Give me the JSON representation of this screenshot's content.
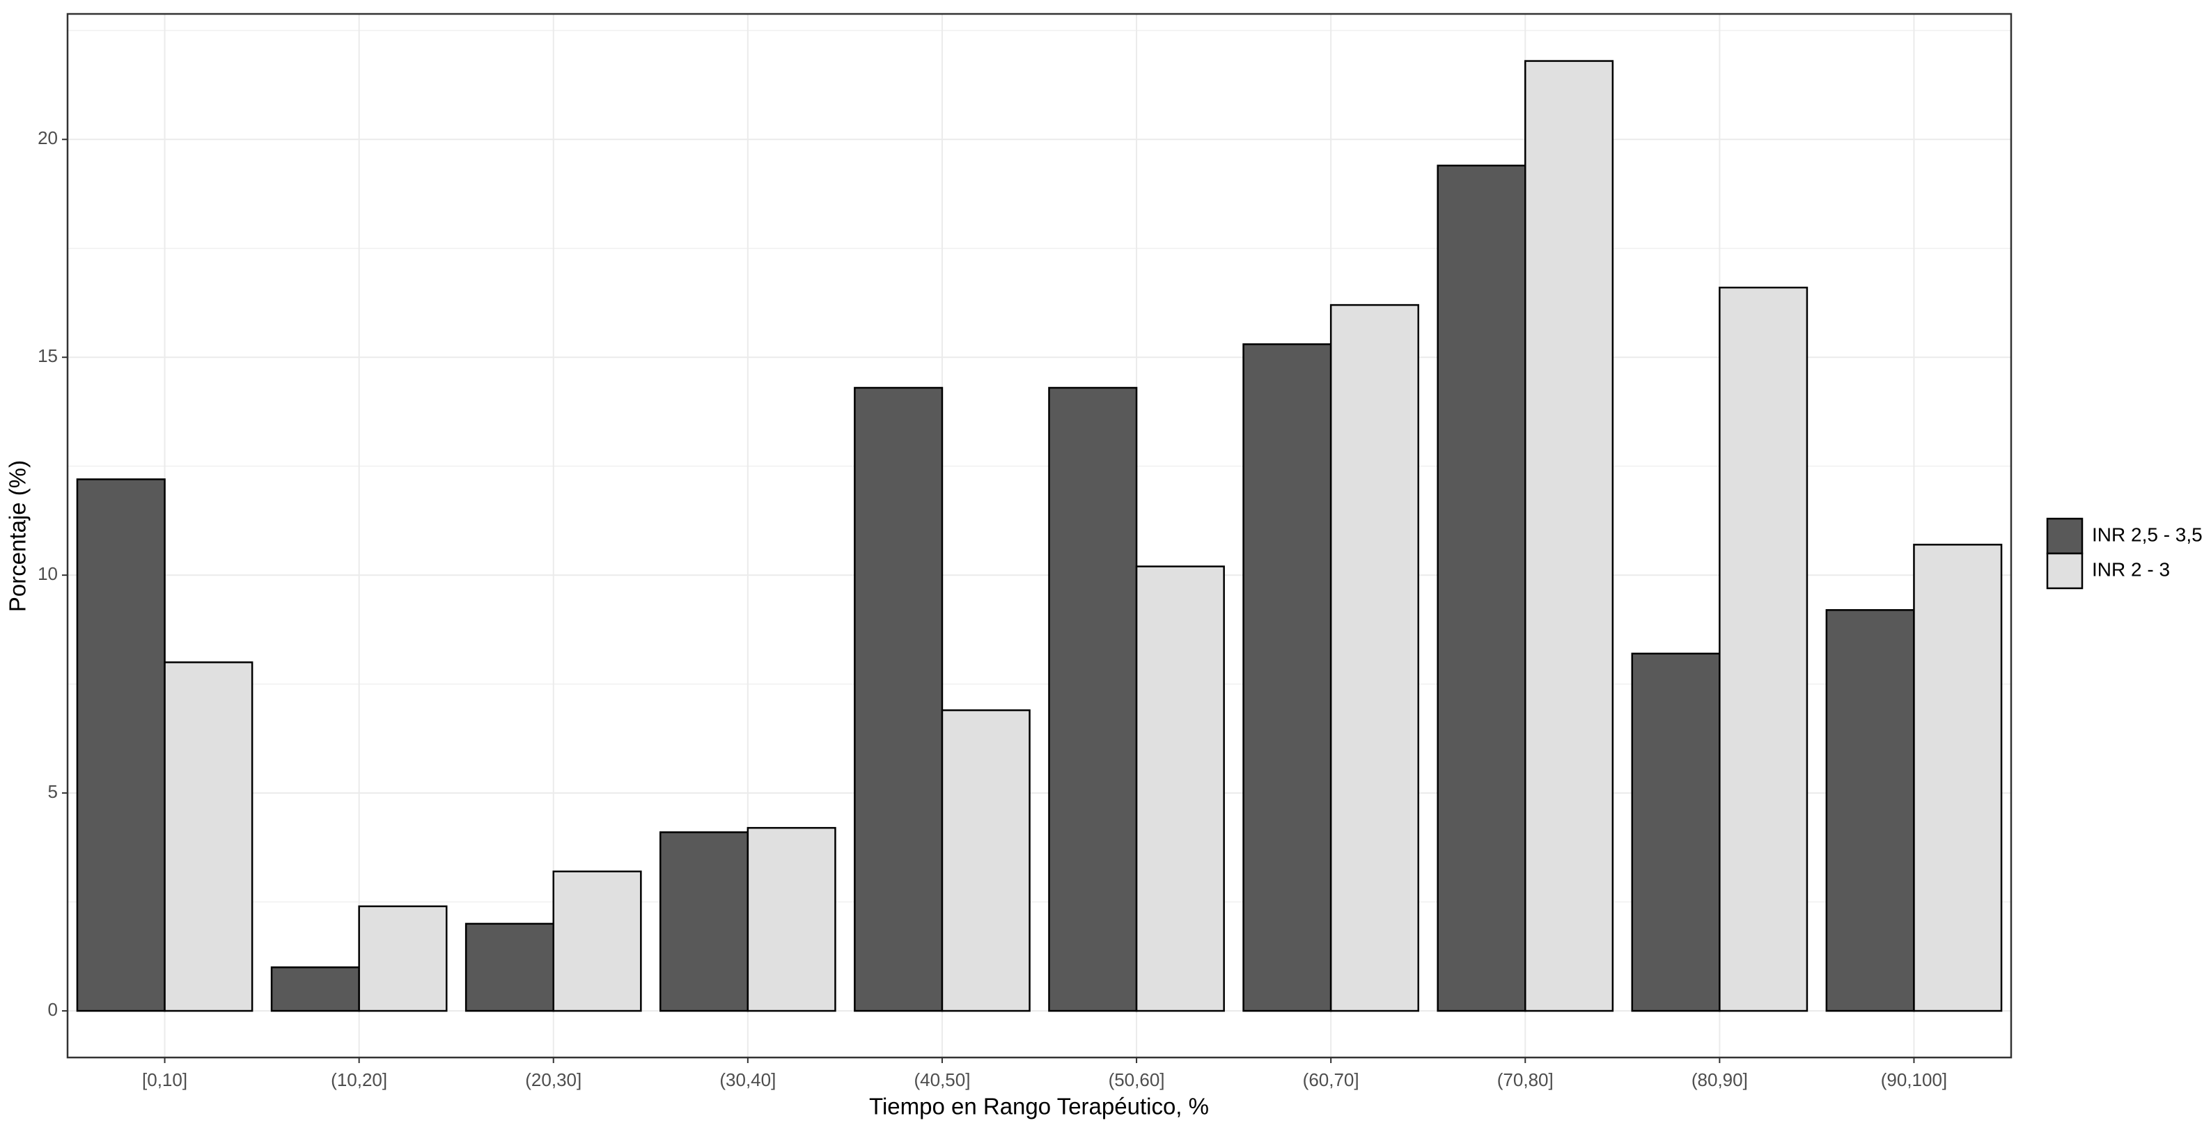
{
  "chart_data": {
    "type": "bar",
    "x_label": "Tiempo en Rango Terapéutico, %",
    "y_label": "Porcentaje (%)",
    "categories": [
      "[0,10]",
      "(10,20]",
      "(20,30]",
      "(30,40]",
      "(40,50]",
      "(50,60]",
      "(60,70]",
      "(70,80]",
      "(80,90]",
      "(90,100]"
    ],
    "series": [
      {
        "name": "INR 2,5 - 3,5",
        "color": "#595959",
        "values": [
          12.2,
          1.0,
          2.0,
          4.1,
          14.3,
          14.3,
          15.3,
          19.4,
          8.2,
          9.2
        ]
      },
      {
        "name": "INR 2 - 3",
        "color": "#e0e0e0",
        "values": [
          8.0,
          2.4,
          3.2,
          4.2,
          6.9,
          10.2,
          16.2,
          21.8,
          16.6,
          10.7
        ]
      }
    ],
    "ylim": [
      -1.07,
      22.88
    ],
    "yticks": [
      0,
      5,
      10,
      15,
      20
    ],
    "grid": true,
    "legend_position": "right"
  }
}
